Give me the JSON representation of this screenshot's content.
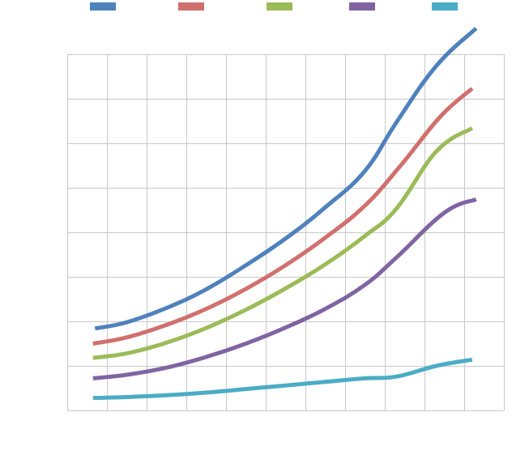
{
  "chart_data": {
    "type": "line",
    "title": "",
    "xlabel": "",
    "ylabel": "",
    "x": [
      0,
      1,
      2,
      3,
      4,
      5,
      6,
      7,
      8,
      9
    ],
    "xlim": [
      -1,
      10
    ],
    "ylim": [
      0,
      8
    ],
    "grid": true,
    "legend_position": "top",
    "series": [
      {
        "name": "",
        "color": "#4f81bd",
        "points": [
          [
            -0.3,
            1.84
          ],
          [
            0.5,
            1.98
          ],
          [
            1.5,
            2.3
          ],
          [
            2.5,
            2.72
          ],
          [
            3.5,
            3.26
          ],
          [
            4.5,
            3.86
          ],
          [
            5.5,
            4.56
          ],
          [
            6.5,
            5.38
          ],
          [
            7.3,
            6.48
          ],
          [
            8.3,
            7.74
          ],
          [
            9.3,
            8.58
          ]
        ]
      },
      {
        "name": "",
        "color": "#d0706e",
        "points": [
          [
            -0.35,
            1.5
          ],
          [
            0.5,
            1.64
          ],
          [
            1.5,
            1.92
          ],
          [
            2.5,
            2.28
          ],
          [
            3.5,
            2.73
          ],
          [
            4.5,
            3.26
          ],
          [
            5.5,
            3.88
          ],
          [
            6.5,
            4.6
          ],
          [
            7.4,
            5.5
          ],
          [
            8.4,
            6.6
          ],
          [
            9.2,
            7.23
          ]
        ]
      },
      {
        "name": "",
        "color": "#9bbb59",
        "points": [
          [
            -0.35,
            1.18
          ],
          [
            0.5,
            1.28
          ],
          [
            1.5,
            1.52
          ],
          [
            2.5,
            1.85
          ],
          [
            3.5,
            2.26
          ],
          [
            4.5,
            2.74
          ],
          [
            5.5,
            3.28
          ],
          [
            6.5,
            3.92
          ],
          [
            7.3,
            4.54
          ],
          [
            8.3,
            5.82
          ],
          [
            9.2,
            6.34
          ]
        ]
      },
      {
        "name": "",
        "color": "#8064a2",
        "points": [
          [
            -0.35,
            0.72
          ],
          [
            0.5,
            0.8
          ],
          [
            1.5,
            0.96
          ],
          [
            2.5,
            1.2
          ],
          [
            3.5,
            1.5
          ],
          [
            4.5,
            1.86
          ],
          [
            5.5,
            2.28
          ],
          [
            6.5,
            2.82
          ],
          [
            7.3,
            3.44
          ],
          [
            8.5,
            4.44
          ],
          [
            9.3,
            4.74
          ]
        ]
      },
      {
        "name": "",
        "color": "#4bacc6",
        "points": [
          [
            -0.35,
            0.28
          ],
          [
            0.5,
            0.3
          ],
          [
            1.5,
            0.34
          ],
          [
            2.5,
            0.4
          ],
          [
            3.5,
            0.48
          ],
          [
            4.5,
            0.56
          ],
          [
            5.5,
            0.64
          ],
          [
            6.5,
            0.72
          ],
          [
            7.3,
            0.76
          ],
          [
            8.3,
            1.0
          ],
          [
            9.2,
            1.14
          ]
        ]
      }
    ]
  }
}
